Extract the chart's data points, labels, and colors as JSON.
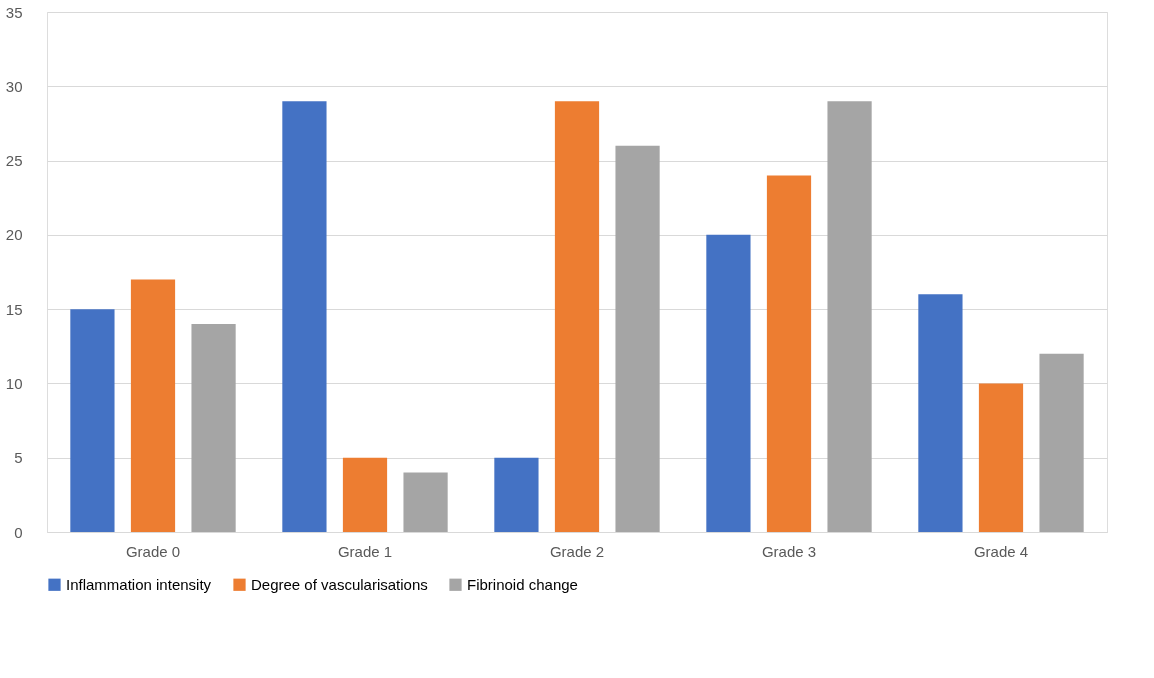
{
  "chart_data": {
    "type": "bar",
    "categories": [
      "Grade 0",
      "Grade 1",
      "Grade 2",
      "Grade 3",
      "Grade 4"
    ],
    "series": [
      {
        "name": "Inflammation intensity",
        "color": "#4472c4",
        "values": [
          15,
          29,
          5,
          20,
          16
        ]
      },
      {
        "name": "Degree of vascularisations",
        "color": "#ed7d31",
        "values": [
          17,
          5,
          29,
          24,
          10
        ]
      },
      {
        "name": "Fibrinoid change",
        "color": "#a5a5a5",
        "values": [
          14,
          4,
          26,
          29,
          12
        ]
      }
    ],
    "ylim": [
      0,
      35
    ],
    "yticks": [
      0,
      5,
      10,
      15,
      20,
      25,
      30,
      35
    ],
    "grid": "y",
    "legend": "bottom"
  }
}
